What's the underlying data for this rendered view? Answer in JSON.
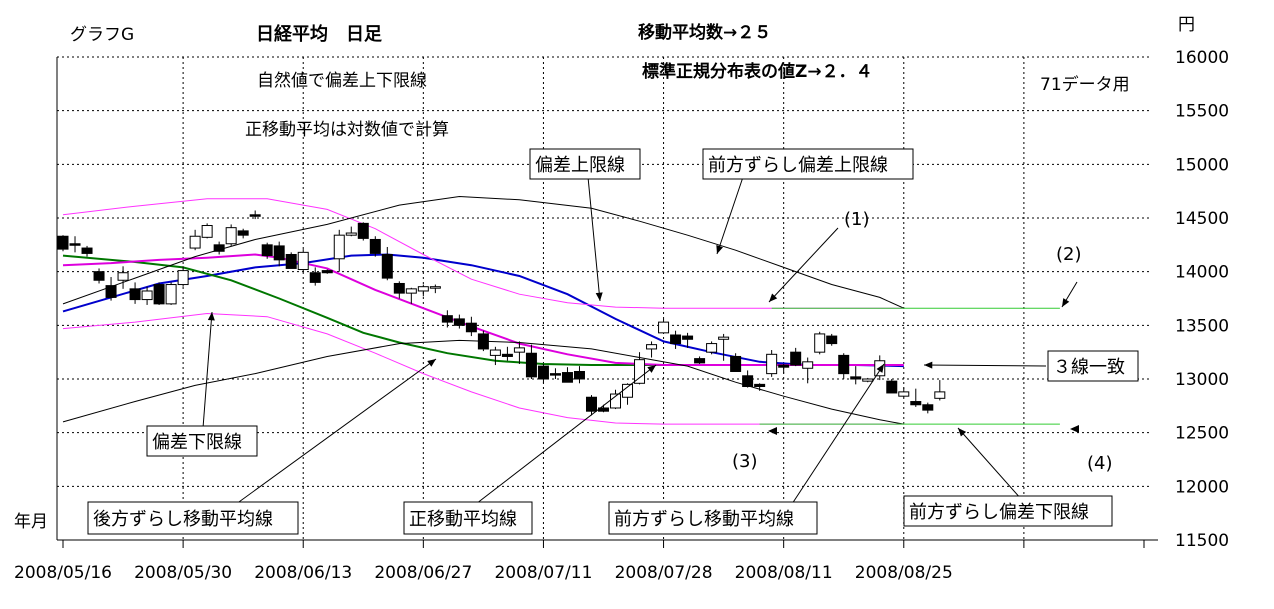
{
  "chart_data": {
    "type": "line",
    "chart_label": "グラフG",
    "title": "日経平均　日足",
    "header_ma_period": "移動平均数→２５",
    "header_z": "標準正規分布表の値Z→２．４",
    "note_band": "自然値で偏差上下限線",
    "note_log": "正移動平均は対数値で計算",
    "note_data": "71データ用",
    "ylabel": "円",
    "xlabel": "年月",
    "ylim": [
      11500,
      16000
    ],
    "y_ticks": [
      11500,
      12000,
      12500,
      13000,
      13500,
      14000,
      14500,
      15000,
      15500,
      16000
    ],
    "x_tick_labels": [
      "2008/05/16",
      "2008/05/30",
      "2008/06/13",
      "2008/06/27",
      "2008/07/11",
      "2008/07/28",
      "2008/08/11",
      "2008/08/25"
    ],
    "x_tick_index": [
      0,
      10,
      20,
      30,
      40,
      50,
      60,
      70
    ],
    "n_slots": 91,
    "grid": true,
    "candles": [
      {
        "o": 14330,
        "h": 14340,
        "l": 14190,
        "c": 14210
      },
      {
        "o": 14260,
        "h": 14330,
        "l": 14180,
        "c": 14250
      },
      {
        "o": 14220,
        "h": 14240,
        "l": 14140,
        "c": 14170
      },
      {
        "o": 14000,
        "h": 14030,
        "l": 13890,
        "c": 13920
      },
      {
        "o": 13870,
        "h": 13950,
        "l": 13730,
        "c": 13760
      },
      {
        "o": 13920,
        "h": 14050,
        "l": 13840,
        "c": 13990
      },
      {
        "o": 13840,
        "h": 13900,
        "l": 13700,
        "c": 13740
      },
      {
        "o": 13740,
        "h": 13860,
        "l": 13690,
        "c": 13820
      },
      {
        "o": 13880,
        "h": 13900,
        "l": 13690,
        "c": 13700
      },
      {
        "o": 13700,
        "h": 13900,
        "l": 13690,
        "c": 13880
      },
      {
        "o": 13880,
        "h": 14050,
        "l": 13860,
        "c": 14010
      },
      {
        "o": 14220,
        "h": 14390,
        "l": 14200,
        "c": 14330
      },
      {
        "o": 14320,
        "h": 14450,
        "l": 14310,
        "c": 14430
      },
      {
        "o": 14250,
        "h": 14280,
        "l": 14160,
        "c": 14190
      },
      {
        "o": 14260,
        "h": 14440,
        "l": 14240,
        "c": 14410
      },
      {
        "o": 14380,
        "h": 14400,
        "l": 14310,
        "c": 14340
      },
      {
        "o": 14530,
        "h": 14570,
        "l": 14490,
        "c": 14520
      },
      {
        "o": 14250,
        "h": 14270,
        "l": 14120,
        "c": 14150
      },
      {
        "o": 14240,
        "h": 14280,
        "l": 14050,
        "c": 14110
      },
      {
        "o": 14160,
        "h": 14180,
        "l": 14030,
        "c": 14030
      },
      {
        "o": 14020,
        "h": 14210,
        "l": 14000,
        "c": 14180
      },
      {
        "o": 13990,
        "h": 14040,
        "l": 13870,
        "c": 13900
      },
      {
        "o": 14010,
        "h": 14020,
        "l": 13980,
        "c": 13990
      },
      {
        "o": 14120,
        "h": 14390,
        "l": 14000,
        "c": 14340
      },
      {
        "o": 14340,
        "h": 14420,
        "l": 14330,
        "c": 14360
      },
      {
        "o": 14450,
        "h": 14460,
        "l": 14290,
        "c": 14310
      },
      {
        "o": 14300,
        "h": 14330,
        "l": 14140,
        "c": 14170
      },
      {
        "o": 14160,
        "h": 14230,
        "l": 13920,
        "c": 13940
      },
      {
        "o": 13890,
        "h": 13910,
        "l": 13750,
        "c": 13800
      },
      {
        "o": 13800,
        "h": 13850,
        "l": 13700,
        "c": 13840
      },
      {
        "o": 13820,
        "h": 13880,
        "l": 13770,
        "c": 13860
      },
      {
        "o": 13850,
        "h": 13880,
        "l": 13800,
        "c": 13860
      },
      {
        "o": 13590,
        "h": 13640,
        "l": 13480,
        "c": 13530
      },
      {
        "o": 13560,
        "h": 13600,
        "l": 13470,
        "c": 13500
      },
      {
        "o": 13520,
        "h": 13580,
        "l": 13400,
        "c": 13440
      },
      {
        "o": 13420,
        "h": 13450,
        "l": 13260,
        "c": 13280
      },
      {
        "o": 13220,
        "h": 13300,
        "l": 13130,
        "c": 13270
      },
      {
        "o": 13230,
        "h": 13300,
        "l": 13170,
        "c": 13210
      },
      {
        "o": 13250,
        "h": 13350,
        "l": 13140,
        "c": 13290
      },
      {
        "o": 13240,
        "h": 13320,
        "l": 13000,
        "c": 13020
      },
      {
        "o": 13120,
        "h": 13140,
        "l": 12960,
        "c": 13000
      },
      {
        "o": 13050,
        "h": 13100,
        "l": 13000,
        "c": 13040
      },
      {
        "o": 13060,
        "h": 13110,
        "l": 13000,
        "c": 12970
      },
      {
        "o": 13070,
        "h": 13120,
        "l": 12960,
        "c": 13000
      },
      {
        "o": 12830,
        "h": 12850,
        "l": 12660,
        "c": 12700
      },
      {
        "o": 12730,
        "h": 12760,
        "l": 12690,
        "c": 12700
      },
      {
        "o": 12730,
        "h": 12900,
        "l": 12720,
        "c": 12860
      },
      {
        "o": 12830,
        "h": 12960,
        "l": 12760,
        "c": 12950
      },
      {
        "o": 12960,
        "h": 13250,
        "l": 12950,
        "c": 13180
      },
      {
        "o": 13280,
        "h": 13350,
        "l": 13200,
        "c": 13320
      },
      {
        "o": 13430,
        "h": 13560,
        "l": 13430,
        "c": 13530
      },
      {
        "o": 13410,
        "h": 13450,
        "l": 13280,
        "c": 13330
      },
      {
        "o": 13400,
        "h": 13430,
        "l": 13290,
        "c": 13370
      },
      {
        "o": 13190,
        "h": 13210,
        "l": 13140,
        "c": 13150
      },
      {
        "o": 13250,
        "h": 13350,
        "l": 13230,
        "c": 13330
      },
      {
        "o": 13370,
        "h": 13420,
        "l": 13170,
        "c": 13390
      },
      {
        "o": 13210,
        "h": 13240,
        "l": 13070,
        "c": 13070
      },
      {
        "o": 13030,
        "h": 13080,
        "l": 12920,
        "c": 12930
      },
      {
        "o": 12950,
        "h": 12960,
        "l": 12890,
        "c": 12930
      },
      {
        "o": 13050,
        "h": 13270,
        "l": 13020,
        "c": 13230
      },
      {
        "o": 13130,
        "h": 13140,
        "l": 13050,
        "c": 13110
      },
      {
        "o": 13250,
        "h": 13290,
        "l": 13120,
        "c": 13130
      },
      {
        "o": 13100,
        "h": 13200,
        "l": 12960,
        "c": 13160
      },
      {
        "o": 13250,
        "h": 13440,
        "l": 13230,
        "c": 13420
      },
      {
        "o": 13400,
        "h": 13420,
        "l": 13310,
        "c": 13330
      },
      {
        "o": 13220,
        "h": 13240,
        "l": 13000,
        "c": 13050
      },
      {
        "o": 13020,
        "h": 13120,
        "l": 12950,
        "c": 13000
      },
      {
        "o": 12980,
        "h": 13010,
        "l": 12970,
        "c": 13000
      },
      {
        "o": 13030,
        "h": 13220,
        "l": 12990,
        "c": 13170
      },
      {
        "o": 12980,
        "h": 13000,
        "l": 12880,
        "c": 12870
      },
      {
        "o": 12840,
        "h": 12920,
        "l": 12830,
        "c": 12880
      },
      {
        "o": 12790,
        "h": 12910,
        "l": 12740,
        "c": 12760
      },
      {
        "o": 12760,
        "h": 12780,
        "l": 12680,
        "c": 12710
      },
      {
        "o": 12820,
        "h": 12990,
        "l": 12800,
        "c": 12880
      }
    ],
    "series": [
      {
        "name": "正移動平均線",
        "color": "#0000cc",
        "points": [
          [
            0,
            13630
          ],
          [
            4,
            13760
          ],
          [
            8,
            13890
          ],
          [
            12,
            13960
          ],
          [
            16,
            14040
          ],
          [
            20,
            14080
          ],
          [
            24,
            14150
          ],
          [
            27,
            14160
          ],
          [
            30,
            14130
          ],
          [
            34,
            14060
          ],
          [
            38,
            13960
          ],
          [
            42,
            13790
          ],
          [
            46,
            13560
          ],
          [
            50,
            13350
          ],
          [
            54,
            13250
          ],
          [
            58,
            13160
          ],
          [
            62,
            13130
          ],
          [
            66,
            13130
          ],
          [
            70,
            13120
          ]
        ]
      },
      {
        "name": "後方ずらし移動平均線",
        "color": "#007700",
        "points": [
          [
            0,
            14150
          ],
          [
            6,
            14090
          ],
          [
            10,
            14040
          ],
          [
            14,
            13920
          ],
          [
            18,
            13750
          ],
          [
            22,
            13570
          ],
          [
            25,
            13430
          ],
          [
            28,
            13340
          ],
          [
            32,
            13240
          ],
          [
            36,
            13170
          ],
          [
            40,
            13140
          ],
          [
            44,
            13130
          ],
          [
            48,
            13130
          ],
          [
            52,
            13130
          ],
          [
            56,
            13130
          ]
        ]
      },
      {
        "name": "前方ずらし移動平均線",
        "color": "#dd00dd",
        "points": [
          [
            0,
            14060
          ],
          [
            4,
            14080
          ],
          [
            8,
            14110
          ],
          [
            12,
            14130
          ],
          [
            16,
            14160
          ],
          [
            18,
            14130
          ],
          [
            22,
            14030
          ],
          [
            26,
            13830
          ],
          [
            30,
            13660
          ],
          [
            34,
            13490
          ],
          [
            38,
            13330
          ],
          [
            42,
            13230
          ],
          [
            46,
            13150
          ],
          [
            50,
            13130
          ],
          [
            55,
            13130
          ],
          [
            70,
            13130
          ]
        ]
      },
      {
        "name": "偏差上限線",
        "color": "#ff33ff",
        "points": [
          [
            0,
            14530
          ],
          [
            6,
            14610
          ],
          [
            12,
            14680
          ],
          [
            17,
            14680
          ],
          [
            22,
            14580
          ],
          [
            26,
            14400
          ],
          [
            30,
            14160
          ],
          [
            34,
            13930
          ],
          [
            38,
            13790
          ],
          [
            42,
            13710
          ],
          [
            46,
            13670
          ],
          [
            50,
            13660
          ],
          [
            58,
            13660
          ],
          [
            70,
            13660
          ]
        ]
      },
      {
        "name": "偏差下限線",
        "color": "#ff33ff",
        "points": [
          [
            0,
            13470
          ],
          [
            6,
            13530
          ],
          [
            12,
            13610
          ],
          [
            17,
            13580
          ],
          [
            22,
            13420
          ],
          [
            26,
            13240
          ],
          [
            30,
            13050
          ],
          [
            34,
            12880
          ],
          [
            38,
            12730
          ],
          [
            42,
            12640
          ],
          [
            46,
            12590
          ],
          [
            50,
            12580
          ],
          [
            58,
            12580
          ],
          [
            70,
            12580
          ]
        ]
      },
      {
        "name": "前方ずらし偏差上限線",
        "color": "#000000",
        "points": [
          [
            0,
            13700
          ],
          [
            6,
            13940
          ],
          [
            11,
            14140
          ],
          [
            16,
            14300
          ],
          [
            22,
            14440
          ],
          [
            28,
            14620
          ],
          [
            33,
            14700
          ],
          [
            38,
            14670
          ],
          [
            44,
            14590
          ],
          [
            48,
            14470
          ],
          [
            52,
            14340
          ],
          [
            56,
            14200
          ],
          [
            60,
            14040
          ],
          [
            64,
            13880
          ],
          [
            68,
            13760
          ],
          [
            70,
            13660
          ]
        ]
      },
      {
        "name": "前方ずらし偏差下限線",
        "color": "#000000",
        "points": [
          [
            0,
            12600
          ],
          [
            6,
            12790
          ],
          [
            11,
            12940
          ],
          [
            16,
            13050
          ],
          [
            22,
            13210
          ],
          [
            28,
            13330
          ],
          [
            33,
            13360
          ],
          [
            38,
            13340
          ],
          [
            44,
            13280
          ],
          [
            48,
            13200
          ],
          [
            52,
            13120
          ],
          [
            56,
            12970
          ],
          [
            60,
            12840
          ],
          [
            64,
            12720
          ],
          [
            68,
            12620
          ],
          [
            70,
            12580
          ]
        ]
      },
      {
        "name": "前方ずらし偏差上限線（延長）",
        "color": "#33cc33",
        "points": [
          [
            59,
            13660
          ],
          [
            70,
            13660
          ],
          [
            83,
            13660
          ]
        ]
      },
      {
        "name": "前方ずらし偏差下限線（延長）",
        "color": "#33cc33",
        "points": [
          [
            58,
            12580
          ],
          [
            70,
            12580
          ],
          [
            83,
            12580
          ]
        ]
      }
    ],
    "annotations": [
      {
        "label": "偏差上限線",
        "box": true,
        "at": [
          44,
          13680
        ]
      },
      {
        "label": "前方ずらし偏差上限線",
        "box": true,
        "at": [
          54,
          14040
        ]
      },
      {
        "label": "(1)",
        "box": false,
        "at": [
          59,
          13680
        ]
      },
      {
        "label": "(2)",
        "box": false,
        "at": [
          82,
          13650
        ]
      },
      {
        "label": "偏差下限線",
        "box": true,
        "at": [
          12,
          13600
        ]
      },
      {
        "label": "後方ずらし移動平均線",
        "box": true,
        "at": [
          31,
          13150
        ]
      },
      {
        "label": "正移動平均線",
        "box": true,
        "at": [
          49,
          13150
        ]
      },
      {
        "label": "前方ずらし移動平均線",
        "box": true,
        "at": [
          68,
          13110
        ]
      },
      {
        "label": "３線一致",
        "box": true,
        "at": [
          71,
          13130
        ]
      },
      {
        "label": "(3)",
        "box": false,
        "at": [
          58,
          12550
        ]
      },
      {
        "label": "(4)",
        "box": false,
        "at": [
          83,
          12550
        ]
      },
      {
        "label": "前方ずらし偏差下限線",
        "box": true,
        "at": [
          74,
          12580
        ]
      }
    ]
  }
}
